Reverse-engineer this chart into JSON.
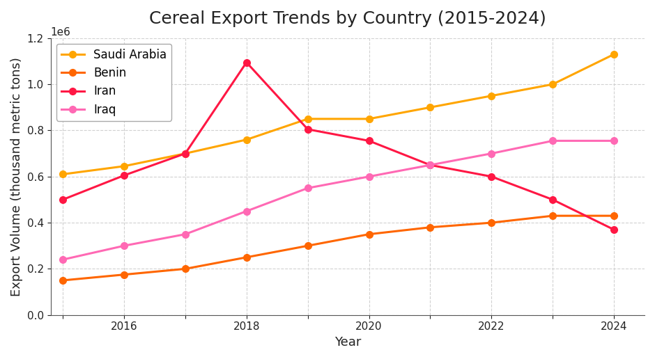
{
  "title": "Cereal Export Trends by Country (2015-2024)",
  "xlabel": "Year",
  "ylabel": "Export Volume (thousand metric tons)",
  "years": [
    2015,
    2016,
    2017,
    2018,
    2019,
    2020,
    2021,
    2022,
    2023,
    2024
  ],
  "series": {
    "Saudi Arabia": {
      "values": [
        610000,
        645000,
        700000,
        760000,
        850000,
        850000,
        900000,
        950000,
        1000000,
        1130000
      ],
      "color": "#FFA500",
      "marker": "o"
    },
    "Benin": {
      "values": [
        150000,
        175000,
        200000,
        250000,
        300000,
        350000,
        380000,
        400000,
        430000,
        430000
      ],
      "color": "#FF6600",
      "marker": "o"
    },
    "Iran": {
      "values": [
        500000,
        605000,
        700000,
        1095000,
        805000,
        755000,
        650000,
        600000,
        500000,
        370000
      ],
      "color": "#FF1744",
      "marker": "o"
    },
    "Iraq": {
      "values": [
        240000,
        300000,
        350000,
        450000,
        550000,
        600000,
        650000,
        700000,
        755000,
        755000
      ],
      "color": "#FF69B4",
      "marker": "o"
    }
  },
  "xlim": [
    2014.8,
    2024.5
  ],
  "ylim": [
    0,
    1200000
  ],
  "background_color": "#ffffff",
  "grid_color": "#cccccc",
  "title_fontsize": 18,
  "label_fontsize": 13,
  "tick_fontsize": 11,
  "legend_fontsize": 12,
  "linewidth": 2.2,
  "markersize": 7
}
